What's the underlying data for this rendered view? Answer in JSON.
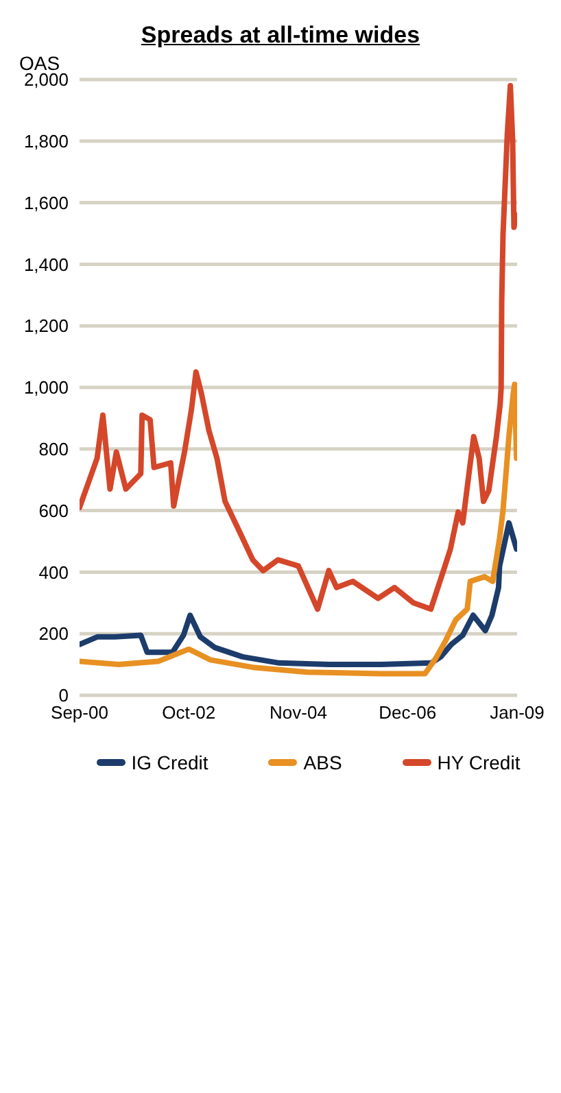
{
  "chart_data": {
    "type": "line",
    "title": "Spreads at all-time wides",
    "ylabel": "OAS",
    "xlim": [
      "2000-09",
      "2009-01"
    ],
    "xticks": [
      {
        "value": "2000-09",
        "label": "Sep-00"
      },
      {
        "value": "2002-10",
        "label": "Oct-02"
      },
      {
        "value": "2004-11",
        "label": "Nov-04"
      },
      {
        "value": "2006-12",
        "label": "Dec-06"
      },
      {
        "value": "2009-01",
        "label": "Jan-09"
      }
    ],
    "ylim": [
      0,
      2000
    ],
    "yticks": [
      {
        "value": 0,
        "label": "0"
      },
      {
        "value": 200,
        "label": "200"
      },
      {
        "value": 400,
        "label": "400"
      },
      {
        "value": 600,
        "label": "600"
      },
      {
        "value": 800,
        "label": "800"
      },
      {
        "value": 1000,
        "label": "1,000"
      },
      {
        "value": 1200,
        "label": "1,200"
      },
      {
        "value": 1400,
        "label": "1,400"
      },
      {
        "value": 1600,
        "label": "1,600"
      },
      {
        "value": 1800,
        "label": "1,800"
      },
      {
        "value": 2000,
        "label": "2,000"
      }
    ],
    "grid": "y",
    "legend": "bottom",
    "line_style": "solid",
    "series": [
      {
        "name": "IG Credit",
        "color": "#1c3c6c",
        "x": [
          "2000-09-01",
          "2001-01-05",
          "2001-05-05",
          "2001-11-01",
          "2001-12-15",
          "2002-06-10",
          "2002-08-25",
          "2002-10-10",
          "2002-12-20",
          "2003-04-01",
          "2003-10-10",
          "2004-06-20",
          "2005-06-01",
          "2006-06-01",
          "2007-05-15",
          "2007-07-20",
          "2007-10-01",
          "2007-12-20",
          "2008-03-01",
          "2008-05-25",
          "2008-07-10",
          "2008-08-25",
          "2008-09-01",
          "2008-11-05",
          "2008-12-28"
        ],
        "values": [
          165,
          190,
          190,
          195,
          140,
          140,
          195,
          260,
          190,
          155,
          125,
          105,
          100,
          100,
          105,
          125,
          165,
          195,
          260,
          210,
          260,
          350,
          420,
          560,
          475
        ]
      },
      {
        "name": "ABS",
        "color": "#e89022",
        "x": [
          "2000-09-01",
          "2001-06-01",
          "2002-03-01",
          "2002-10-01",
          "2003-03-01",
          "2004-01-01",
          "2005-01-01",
          "2006-06-01",
          "2007-04-01",
          "2007-06-15",
          "2007-08-20",
          "2007-11-01",
          "2008-01-20",
          "2008-02-10",
          "2008-05-20",
          "2008-07-15",
          "2008-09-01",
          "2008-09-25",
          "2008-11-05",
          "2008-12-05",
          "2008-12-15",
          "2008-12-28"
        ],
        "values": [
          110,
          100,
          110,
          150,
          115,
          90,
          75,
          70,
          70,
          120,
          175,
          245,
          280,
          370,
          385,
          370,
          510,
          600,
          840,
          980,
          1010,
          770
        ]
      },
      {
        "name": "HY Credit",
        "color": "#d4472a",
        "x": [
          "2000-09-01",
          "2001-01-01",
          "2001-02-10",
          "2001-04-01",
          "2001-05-15",
          "2001-07-20",
          "2001-11-01",
          "2001-11-10",
          "2002-01-05",
          "2002-02-01",
          "2002-05-28",
          "2002-06-18",
          "2002-09-01",
          "2002-10-20",
          "2002-11-20",
          "2002-12-28",
          "2003-02-18",
          "2003-04-15",
          "2003-06-10",
          "2003-09-05",
          "2003-12-20",
          "2004-03-01",
          "2004-06-12",
          "2004-11-01",
          "2005-03-15",
          "2005-06-01",
          "2005-07-25",
          "2005-11-15",
          "2006-05-10",
          "2006-09-01",
          "2007-01-12",
          "2007-05-12",
          "2007-08-18",
          "2007-09-25",
          "2007-11-18",
          "2007-12-20",
          "2008-02-05",
          "2008-03-05",
          "2008-04-12",
          "2008-05-12",
          "2008-06-18",
          "2008-08-10",
          "2008-09-05",
          "2008-09-12",
          "2008-09-16",
          "2008-09-25",
          "2008-10-25",
          "2008-11-15",
          "2008-12-01",
          "2008-12-10",
          "2008-12-28"
        ],
        "values": [
          610,
          770,
          910,
          670,
          790,
          670,
          720,
          910,
          895,
          740,
          755,
          615,
          790,
          930,
          1050,
          980,
          860,
          770,
          630,
          545,
          440,
          405,
          440,
          420,
          280,
          405,
          350,
          370,
          315,
          350,
          300,
          280,
          420,
          475,
          595,
          560,
          735,
          840,
          770,
          630,
          665,
          840,
          945,
          1000,
          1280,
          1495,
          1825,
          1980,
          1800,
          1520,
          1560
        ]
      }
    ]
  }
}
